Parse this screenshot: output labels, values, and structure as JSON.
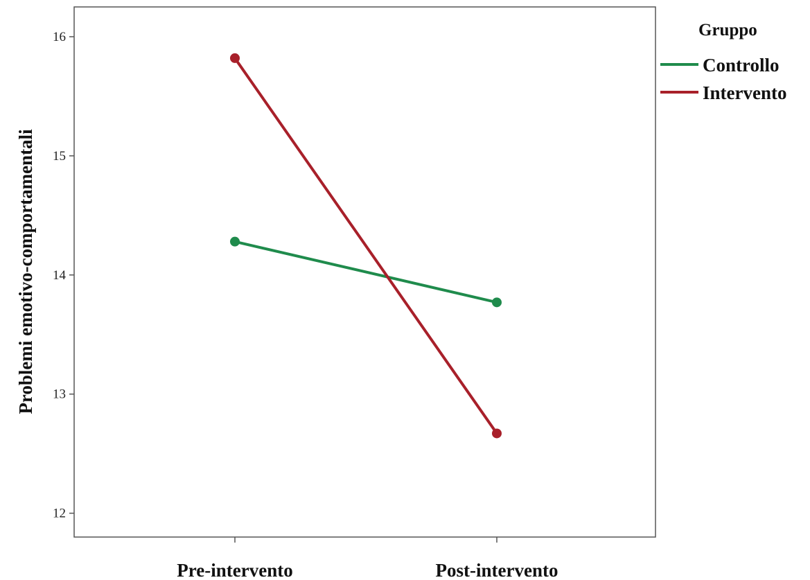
{
  "chart_data": {
    "type": "line",
    "categories": [
      "Pre-intervento",
      "Post-intervento"
    ],
    "ylabel": "Problemi emotivo-comportamentali",
    "xlabel": "",
    "ylim": [
      11.8,
      16.25
    ],
    "yticks": [
      12,
      13,
      14,
      15,
      16
    ],
    "grid": false,
    "legend": {
      "title": "Gruppo",
      "placement": "right"
    },
    "series": [
      {
        "name": "Controllo",
        "values": [
          14.28,
          13.77
        ],
        "color": "#1f8b4c"
      },
      {
        "name": "Intervento",
        "values": [
          15.82,
          12.67
        ],
        "color": "#a8202a"
      }
    ]
  }
}
